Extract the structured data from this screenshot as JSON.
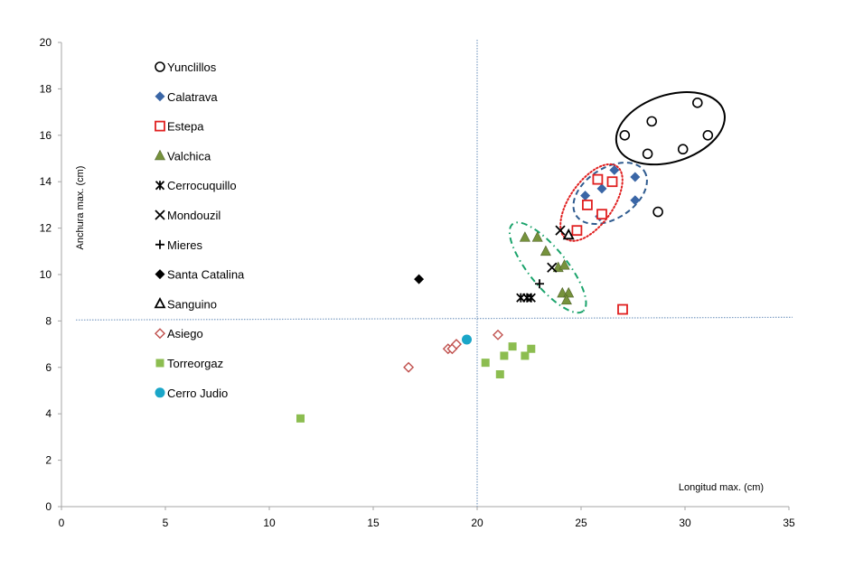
{
  "chart_data": {
    "type": "scatter",
    "title": "",
    "xlabel": "Longitud max. (cm)",
    "ylabel": "Anchura max. (cm)",
    "xlim": [
      0,
      35
    ],
    "ylim": [
      0,
      20
    ],
    "xticks": [
      0,
      5,
      10,
      15,
      20,
      25,
      30,
      35
    ],
    "yticks": [
      0,
      2,
      4,
      6,
      8,
      10,
      12,
      14,
      16,
      18,
      20
    ],
    "grid": false,
    "legend_position": "top-left (inside plot)",
    "reference_lines": [
      {
        "orientation": "vertical",
        "value": 20.0,
        "style": "dotted",
        "color": "#7f9fc4"
      },
      {
        "orientation": "horizontal",
        "value": 8.1,
        "style": "dotted",
        "color": "#7f9fc4"
      }
    ],
    "group_ellipses": [
      {
        "group": "Yunclillos",
        "style": "solid",
        "color": "#000000",
        "center": [
          29.3,
          16.3
        ],
        "note": "encloses Yunclillos cluster"
      },
      {
        "group": "Calatrava",
        "style": "dashed",
        "color": "#2f5b8f",
        "center": [
          26.4,
          13.5
        ],
        "note": "encloses Calatrava cluster"
      },
      {
        "group": "Estepa",
        "style": "dotted",
        "color": "#e02020",
        "center": [
          25.5,
          13.1
        ],
        "note": "encloses Estepa cluster"
      },
      {
        "group": "Valchica",
        "style": "dash-dot",
        "color": "#1aa36b",
        "center": [
          23.4,
          10.3
        ],
        "note": "encloses Valchica cluster"
      }
    ],
    "series": [
      {
        "name": "Yunclillos",
        "marker": "circle-open",
        "color": "#000000",
        "points": [
          [
            30.6,
            17.4
          ],
          [
            28.4,
            16.6
          ],
          [
            27.1,
            16.0
          ],
          [
            31.1,
            16.0
          ],
          [
            29.9,
            15.4
          ],
          [
            28.2,
            15.2
          ],
          [
            28.7,
            12.7
          ]
        ]
      },
      {
        "name": "Calatrava",
        "marker": "diamond-filled",
        "color": "#3a66a6",
        "points": [
          [
            26.6,
            14.5
          ],
          [
            27.6,
            14.2
          ],
          [
            26.0,
            13.7
          ],
          [
            25.2,
            13.4
          ],
          [
            27.6,
            13.2
          ],
          [
            25.9,
            12.5
          ]
        ]
      },
      {
        "name": "Estepa",
        "marker": "square-open",
        "color": "#e02020",
        "points": [
          [
            25.8,
            14.1
          ],
          [
            26.5,
            14.0
          ],
          [
            25.3,
            13.0
          ],
          [
            26.0,
            12.6
          ],
          [
            24.8,
            11.9
          ],
          [
            27.0,
            8.5
          ]
        ]
      },
      {
        "name": "Valchica",
        "marker": "triangle-filled",
        "color": "#76923c",
        "points": [
          [
            22.3,
            11.6
          ],
          [
            22.9,
            11.6
          ],
          [
            23.3,
            11.0
          ],
          [
            23.9,
            10.3
          ],
          [
            24.2,
            10.4
          ],
          [
            24.1,
            9.2
          ],
          [
            24.4,
            9.2
          ],
          [
            24.3,
            8.9
          ]
        ]
      },
      {
        "name": "Cerrocuquillo",
        "marker": "asterisk",
        "color": "#000000",
        "points": [
          [
            22.1,
            9.0
          ],
          [
            22.4,
            9.0
          ],
          [
            22.6,
            9.0
          ]
        ]
      },
      {
        "name": "Mondouzil",
        "marker": "x",
        "color": "#000000",
        "points": [
          [
            24.0,
            11.9
          ],
          [
            23.6,
            10.3
          ]
        ]
      },
      {
        "name": "Mieres",
        "marker": "plus",
        "color": "#000000",
        "points": [
          [
            23.0,
            9.6
          ]
        ]
      },
      {
        "name": "Santa Catalina",
        "marker": "diamond-filled",
        "color": "#000000",
        "points": [
          [
            17.2,
            9.8
          ]
        ]
      },
      {
        "name": "Sanguino",
        "marker": "triangle-open",
        "color": "#000000",
        "points": [
          [
            24.4,
            11.7
          ]
        ]
      },
      {
        "name": "Asiego",
        "marker": "diamond-open",
        "color": "#c0504d",
        "points": [
          [
            16.7,
            6.0
          ],
          [
            18.6,
            6.8
          ],
          [
            18.8,
            6.8
          ],
          [
            19.0,
            7.0
          ],
          [
            21.0,
            7.4
          ]
        ]
      },
      {
        "name": "Torreorgaz",
        "marker": "square-filled",
        "color": "#8cbd50",
        "points": [
          [
            11.5,
            3.8
          ],
          [
            20.4,
            6.2
          ],
          [
            21.3,
            6.5
          ],
          [
            21.7,
            6.9
          ],
          [
            21.1,
            5.7
          ],
          [
            22.3,
            6.5
          ],
          [
            22.6,
            6.8
          ]
        ]
      },
      {
        "name": "Cerro Judio",
        "marker": "circle-filled",
        "color": "#1aa6c8",
        "points": [
          [
            19.5,
            7.2
          ]
        ]
      }
    ]
  }
}
